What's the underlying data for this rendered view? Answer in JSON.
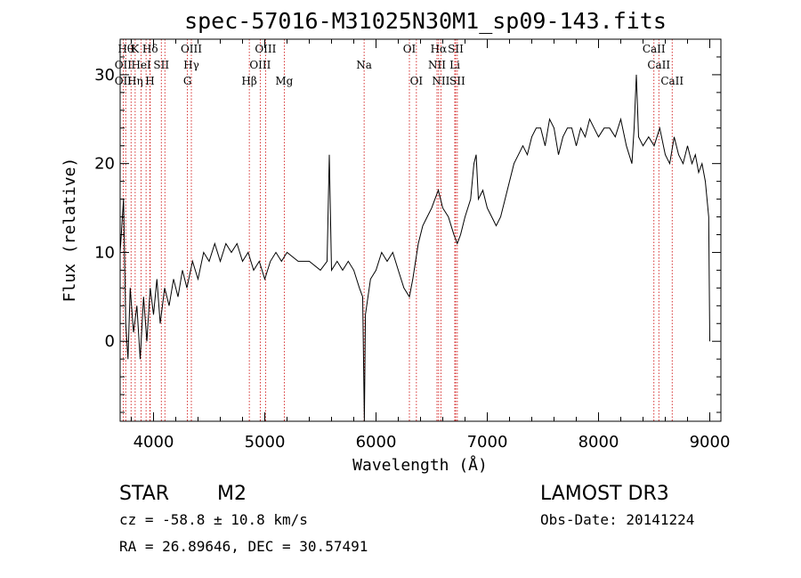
{
  "chart_data": {
    "type": "line",
    "title": "spec-57016-M31025N30M1_sp09-143.fits",
    "xlabel": "Wavelength (Å)",
    "ylabel": "Flux (relative)",
    "xlim": [
      3700,
      9100
    ],
    "ylim": [
      -9,
      34
    ],
    "xticks": [
      4000,
      5000,
      6000,
      7000,
      8000,
      9000
    ],
    "yticks": [
      0,
      10,
      20,
      30
    ],
    "line_color": "#000000",
    "marker_color": "#cc0000",
    "spectrum": [
      [
        3700,
        10
      ],
      [
        3730,
        16
      ],
      [
        3750,
        2
      ],
      [
        3770,
        -2
      ],
      [
        3790,
        6
      ],
      [
        3820,
        1
      ],
      [
        3850,
        4
      ],
      [
        3880,
        -2
      ],
      [
        3910,
        5
      ],
      [
        3940,
        0
      ],
      [
        3970,
        6
      ],
      [
        4000,
        3
      ],
      [
        4030,
        7
      ],
      [
        4060,
        2
      ],
      [
        4100,
        6
      ],
      [
        4140,
        4
      ],
      [
        4180,
        7
      ],
      [
        4220,
        5
      ],
      [
        4260,
        8
      ],
      [
        4300,
        6
      ],
      [
        4350,
        9
      ],
      [
        4400,
        7
      ],
      [
        4450,
        10
      ],
      [
        4500,
        9
      ],
      [
        4550,
        11
      ],
      [
        4600,
        9
      ],
      [
        4650,
        11
      ],
      [
        4700,
        10
      ],
      [
        4750,
        11
      ],
      [
        4800,
        9
      ],
      [
        4850,
        10
      ],
      [
        4900,
        8
      ],
      [
        4950,
        9
      ],
      [
        5000,
        7
      ],
      [
        5050,
        9
      ],
      [
        5100,
        10
      ],
      [
        5150,
        9
      ],
      [
        5200,
        10
      ],
      [
        5300,
        9
      ],
      [
        5400,
        9
      ],
      [
        5500,
        8
      ],
      [
        5560,
        9
      ],
      [
        5580,
        21
      ],
      [
        5600,
        8
      ],
      [
        5650,
        9
      ],
      [
        5700,
        8
      ],
      [
        5750,
        9
      ],
      [
        5800,
        8
      ],
      [
        5850,
        6
      ],
      [
        5880,
        5
      ],
      [
        5895,
        -9
      ],
      [
        5905,
        3
      ],
      [
        5950,
        7
      ],
      [
        6000,
        8
      ],
      [
        6050,
        10
      ],
      [
        6100,
        9
      ],
      [
        6150,
        10
      ],
      [
        6200,
        8
      ],
      [
        6250,
        6
      ],
      [
        6300,
        5
      ],
      [
        6330,
        7
      ],
      [
        6380,
        11
      ],
      [
        6420,
        13
      ],
      [
        6460,
        14
      ],
      [
        6500,
        15
      ],
      [
        6530,
        16
      ],
      [
        6560,
        17
      ],
      [
        6600,
        15
      ],
      [
        6650,
        14
      ],
      [
        6700,
        12
      ],
      [
        6730,
        11
      ],
      [
        6760,
        12
      ],
      [
        6800,
        14
      ],
      [
        6850,
        16
      ],
      [
        6880,
        20
      ],
      [
        6900,
        21
      ],
      [
        6920,
        16
      ],
      [
        6960,
        17
      ],
      [
        7000,
        15
      ],
      [
        7040,
        14
      ],
      [
        7080,
        13
      ],
      [
        7120,
        14
      ],
      [
        7160,
        16
      ],
      [
        7200,
        18
      ],
      [
        7240,
        20
      ],
      [
        7280,
        21
      ],
      [
        7320,
        22
      ],
      [
        7360,
        21
      ],
      [
        7400,
        23
      ],
      [
        7440,
        24
      ],
      [
        7480,
        24
      ],
      [
        7520,
        22
      ],
      [
        7560,
        25
      ],
      [
        7600,
        24
      ],
      [
        7640,
        21
      ],
      [
        7680,
        23
      ],
      [
        7720,
        24
      ],
      [
        7760,
        24
      ],
      [
        7800,
        22
      ],
      [
        7840,
        24
      ],
      [
        7880,
        23
      ],
      [
        7920,
        25
      ],
      [
        7960,
        24
      ],
      [
        8000,
        23
      ],
      [
        8050,
        24
      ],
      [
        8100,
        24
      ],
      [
        8150,
        23
      ],
      [
        8200,
        25
      ],
      [
        8250,
        22
      ],
      [
        8300,
        20
      ],
      [
        8320,
        24
      ],
      [
        8340,
        30
      ],
      [
        8360,
        23
      ],
      [
        8400,
        22
      ],
      [
        8450,
        23
      ],
      [
        8500,
        22
      ],
      [
        8550,
        24
      ],
      [
        8600,
        21
      ],
      [
        8640,
        20
      ],
      [
        8680,
        23
      ],
      [
        8720,
        21
      ],
      [
        8760,
        20
      ],
      [
        8800,
        22
      ],
      [
        8840,
        20
      ],
      [
        8870,
        21
      ],
      [
        8900,
        19
      ],
      [
        8930,
        20
      ],
      [
        8960,
        18
      ],
      [
        8990,
        14
      ],
      [
        9000,
        0
      ]
    ],
    "lines": [
      {
        "wl": 3750,
        "row": 0,
        "label": "Hθ"
      },
      {
        "wl": 3835,
        "row": 0,
        "label": "K"
      },
      {
        "wl": 3970,
        "row": 0,
        "label": "Hδ"
      },
      {
        "wl": 4340,
        "row": 0,
        "label": "OIII"
      },
      {
        "wl": 5007,
        "row": 0,
        "label": "OIII"
      },
      {
        "wl": 6300,
        "row": 0,
        "label": "OI"
      },
      {
        "wl": 6563,
        "row": 0,
        "label": "Hα"
      },
      {
        "wl": 6716,
        "row": 0,
        "label": "SII"
      },
      {
        "wl": 8498,
        "row": 0,
        "label": "CaII"
      },
      {
        "wl": 3727,
        "row": 1,
        "label": "OII"
      },
      {
        "wl": 3889,
        "row": 1,
        "label": "HeI"
      },
      {
        "wl": 4070,
        "row": 1,
        "label": "SII"
      },
      {
        "wl": 4340,
        "row": 1,
        "label": "Hγ"
      },
      {
        "wl": 4959,
        "row": 1,
        "label": "OIII"
      },
      {
        "wl": 5893,
        "row": 1,
        "label": "Na"
      },
      {
        "wl": 6548,
        "row": 1,
        "label": "NII"
      },
      {
        "wl": 6708,
        "row": 1,
        "label": "Li"
      },
      {
        "wl": 8542,
        "row": 1,
        "label": "CaII"
      },
      {
        "wl": 3727,
        "row": 2,
        "label": "OII"
      },
      {
        "wl": 3835,
        "row": 2,
        "label": "Hη"
      },
      {
        "wl": 3968,
        "row": 2,
        "label": "H"
      },
      {
        "wl": 4305,
        "row": 2,
        "label": "G"
      },
      {
        "wl": 4861,
        "row": 2,
        "label": "Hβ"
      },
      {
        "wl": 5175,
        "row": 2,
        "label": "Mg"
      },
      {
        "wl": 6363,
        "row": 2,
        "label": "OI"
      },
      {
        "wl": 6583,
        "row": 2,
        "label": "NII"
      },
      {
        "wl": 6731,
        "row": 2,
        "label": "SII"
      },
      {
        "wl": 8662,
        "row": 2,
        "label": "CaII"
      }
    ],
    "extra_markers": [
      3798,
      3889,
      3933,
      4102,
      4861,
      6583
    ]
  },
  "info": {
    "class": "STAR",
    "subclass": "M2",
    "survey": "LAMOST DR3",
    "cz": "cz = -58.8 ± 10.8 km/s",
    "obsdate": "Obs-Date: 20141224",
    "coords": "RA =  26.89646, DEC =  30.57491"
  }
}
